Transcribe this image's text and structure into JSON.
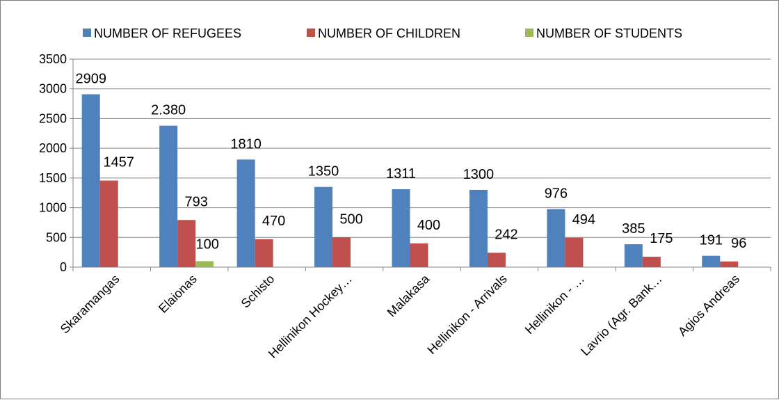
{
  "chart_data": {
    "type": "bar",
    "categories": [
      "Skaramangas",
      "Elaionas",
      "Schisto",
      "Hellinikon Hockey…",
      "Malakasa",
      "Hellinikon - Arrivals",
      "Hellinikon - …",
      "Lavrio (Agr. Bank…",
      "Agios Andreas"
    ],
    "series": [
      {
        "name": "NUMBER OF REFUGEES",
        "color": "#4f81bd",
        "values": [
          2909,
          2380,
          1810,
          1350,
          1311,
          1300,
          976,
          385,
          191
        ],
        "labels": [
          "2909",
          "2.380",
          "1810",
          "1350",
          "1311",
          "1300",
          "976",
          "385",
          "191"
        ]
      },
      {
        "name": "NUMBER OF CHILDREN",
        "color": "#c0504d",
        "values": [
          1457,
          793,
          470,
          500,
          400,
          242,
          494,
          175,
          96
        ],
        "labels": [
          "1457",
          "793",
          "470",
          "500",
          "400",
          "242",
          "494",
          "175",
          "96"
        ]
      },
      {
        "name": "NUMBER OF STUDENTS",
        "color": "#9bbb59",
        "values": [
          0,
          100,
          0,
          0,
          0,
          0,
          0,
          0,
          0
        ],
        "labels": [
          "",
          "100",
          "",
          "",
          "",
          "",
          "",
          "",
          ""
        ]
      }
    ],
    "ylim": [
      0,
      3500
    ],
    "yticks": [
      0,
      500,
      1000,
      1500,
      2000,
      2500,
      3000,
      3500
    ],
    "grid": true,
    "legend_position": "top"
  }
}
